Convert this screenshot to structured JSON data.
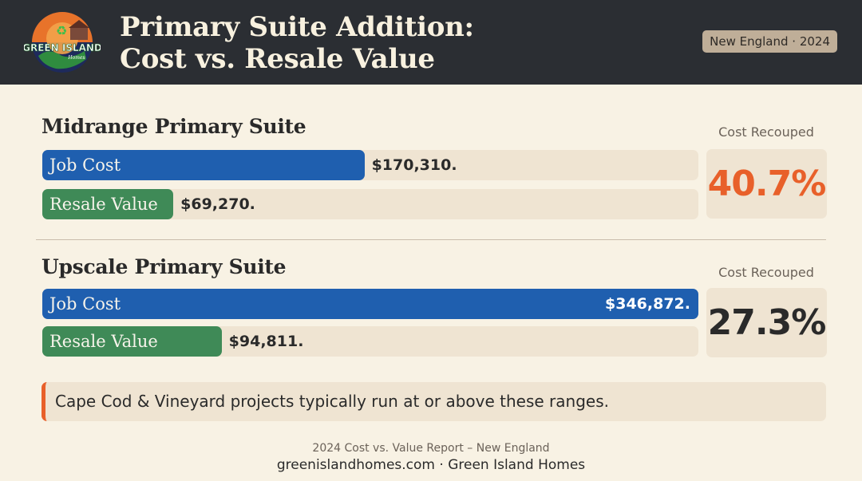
{
  "header": {
    "title_line1": "Primary Suite Addition:",
    "title_line2": "Cost vs. Resale Value",
    "badge": "New England · 2024",
    "logo": {
      "name": "Green Island Homes logo",
      "text": "GREEN ISLAND",
      "subtext": "Homes"
    }
  },
  "chart_data": {
    "type": "bar",
    "orientation": "horizontal",
    "xlim": [
      0,
      346872
    ],
    "groups": [
      {
        "title": "Midrange Primary Suite",
        "bars": [
          {
            "label": "Job Cost",
            "value": 170310,
            "display": "$170,310.",
            "color": "#1f5faf"
          },
          {
            "label": "Resale Value",
            "value": 69270,
            "display": "$69,270.",
            "color": "#3f8a57"
          }
        ],
        "recoup_label": "Cost Recouped",
        "recoup_value": "40.7%",
        "recoup_color": "#e8602a"
      },
      {
        "title": "Upscale Primary Suite",
        "bars": [
          {
            "label": "Job Cost",
            "value": 346872,
            "display": "$346,872.",
            "color": "#1f5faf"
          },
          {
            "label": "Resale Value",
            "value": 94811,
            "display": "$94,811.",
            "color": "#3f8a57"
          }
        ],
        "recoup_label": "Cost Recouped",
        "recoup_value": "27.3%",
        "recoup_color": "#2a2a2a"
      }
    ]
  },
  "note": "Cape Cod & Vineyard projects typically run at or above these ranges.",
  "footer": {
    "source": "2024 Cost vs. Value Report – New England",
    "site": "greenislandhomes.com · Green Island Homes"
  }
}
